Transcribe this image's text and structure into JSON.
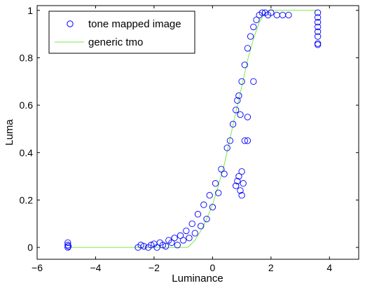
{
  "chart_data": {
    "type": "scatter",
    "xlabel": "Luminance",
    "ylabel": "Luma",
    "xlim": [
      -6,
      5
    ],
    "ylim": [
      -0.05,
      1.02
    ],
    "xticks": [
      -6,
      -4,
      -2,
      0,
      2,
      4
    ],
    "yticks": [
      0,
      0.2,
      0.4,
      0.6,
      0.8,
      1
    ],
    "xtick_labels": [
      "−6",
      "−4",
      "−2",
      "0",
      "2",
      "4"
    ],
    "ytick_labels": [
      "0",
      "0.2",
      "0.4",
      "0.6",
      "0.8",
      "1"
    ],
    "grid": false,
    "legend_position": "top-left",
    "series": [
      {
        "name": "tone mapped image",
        "kind": "scatter",
        "marker": "open-circle",
        "color": "#0000ff",
        "points": [
          [
            -4.95,
            0.0
          ],
          [
            -4.95,
            0.01
          ],
          [
            -4.95,
            0.02
          ],
          [
            -4.93,
            0.005
          ],
          [
            -2.55,
            0.0
          ],
          [
            -2.45,
            0.01
          ],
          [
            -2.35,
            0.005
          ],
          [
            -2.2,
            0.0
          ],
          [
            -2.1,
            0.01
          ],
          [
            -2.0,
            0.015
          ],
          [
            -1.9,
            0.0
          ],
          [
            -1.8,
            0.02
          ],
          [
            -1.7,
            0.01
          ],
          [
            -1.6,
            0.005
          ],
          [
            -1.5,
            0.03
          ],
          [
            -1.4,
            0.02
          ],
          [
            -1.3,
            0.04
          ],
          [
            -1.2,
            0.01
          ],
          [
            -1.1,
            0.05
          ],
          [
            -1.0,
            0.03
          ],
          [
            -0.9,
            0.07
          ],
          [
            -0.8,
            0.04
          ],
          [
            -0.7,
            0.1
          ],
          [
            -0.6,
            0.06
          ],
          [
            -0.5,
            0.14
          ],
          [
            -0.4,
            0.09
          ],
          [
            -0.3,
            0.18
          ],
          [
            -0.2,
            0.12
          ],
          [
            -0.1,
            0.22
          ],
          [
            0.0,
            0.17
          ],
          [
            0.1,
            0.27
          ],
          [
            0.2,
            0.23
          ],
          [
            0.3,
            0.33
          ],
          [
            0.4,
            0.31
          ],
          [
            0.5,
            0.42
          ],
          [
            0.6,
            0.45
          ],
          [
            0.7,
            0.52
          ],
          [
            0.8,
            0.58
          ],
          [
            0.9,
            0.64
          ],
          [
            1.0,
            0.7
          ],
          [
            1.1,
            0.77
          ],
          [
            1.2,
            0.84
          ],
          [
            1.3,
            0.89
          ],
          [
            1.4,
            0.93
          ],
          [
            1.5,
            0.96
          ],
          [
            1.6,
            0.98
          ],
          [
            1.7,
            0.99
          ],
          [
            1.8,
            0.99
          ],
          [
            1.9,
            0.98
          ],
          [
            2.0,
            0.99
          ],
          [
            2.2,
            0.98
          ],
          [
            2.4,
            0.98
          ],
          [
            2.6,
            0.98
          ],
          [
            0.8,
            0.26
          ],
          [
            0.85,
            0.28
          ],
          [
            0.9,
            0.3
          ],
          [
            0.95,
            0.24
          ],
          [
            1.0,
            0.22
          ],
          [
            1.05,
            0.27
          ],
          [
            1.0,
            0.32
          ],
          [
            1.4,
            0.7
          ],
          [
            1.2,
            0.55
          ],
          [
            1.1,
            0.45
          ],
          [
            1.2,
            0.45
          ],
          [
            0.95,
            0.56
          ],
          [
            0.85,
            0.62
          ],
          [
            3.6,
            0.99
          ],
          [
            3.6,
            0.97
          ],
          [
            3.6,
            0.95
          ],
          [
            3.6,
            0.93
          ],
          [
            3.6,
            0.91
          ],
          [
            3.6,
            0.89
          ],
          [
            3.6,
            0.86
          ],
          [
            3.6,
            0.855
          ]
        ]
      },
      {
        "name": "generic tmo",
        "kind": "line",
        "color": "#7ee84a",
        "points": [
          [
            -4.9,
            0.0
          ],
          [
            -0.85,
            0.0
          ],
          [
            -0.6,
            0.03
          ],
          [
            -0.4,
            0.07
          ],
          [
            -0.2,
            0.12
          ],
          [
            0.0,
            0.18
          ],
          [
            0.2,
            0.26
          ],
          [
            0.4,
            0.35
          ],
          [
            0.6,
            0.46
          ],
          [
            0.8,
            0.57
          ],
          [
            1.0,
            0.68
          ],
          [
            1.2,
            0.79
          ],
          [
            1.4,
            0.88
          ],
          [
            1.6,
            0.95
          ],
          [
            1.8,
            0.99
          ],
          [
            2.0,
            1.0
          ],
          [
            3.6,
            1.0
          ]
        ]
      }
    ]
  }
}
